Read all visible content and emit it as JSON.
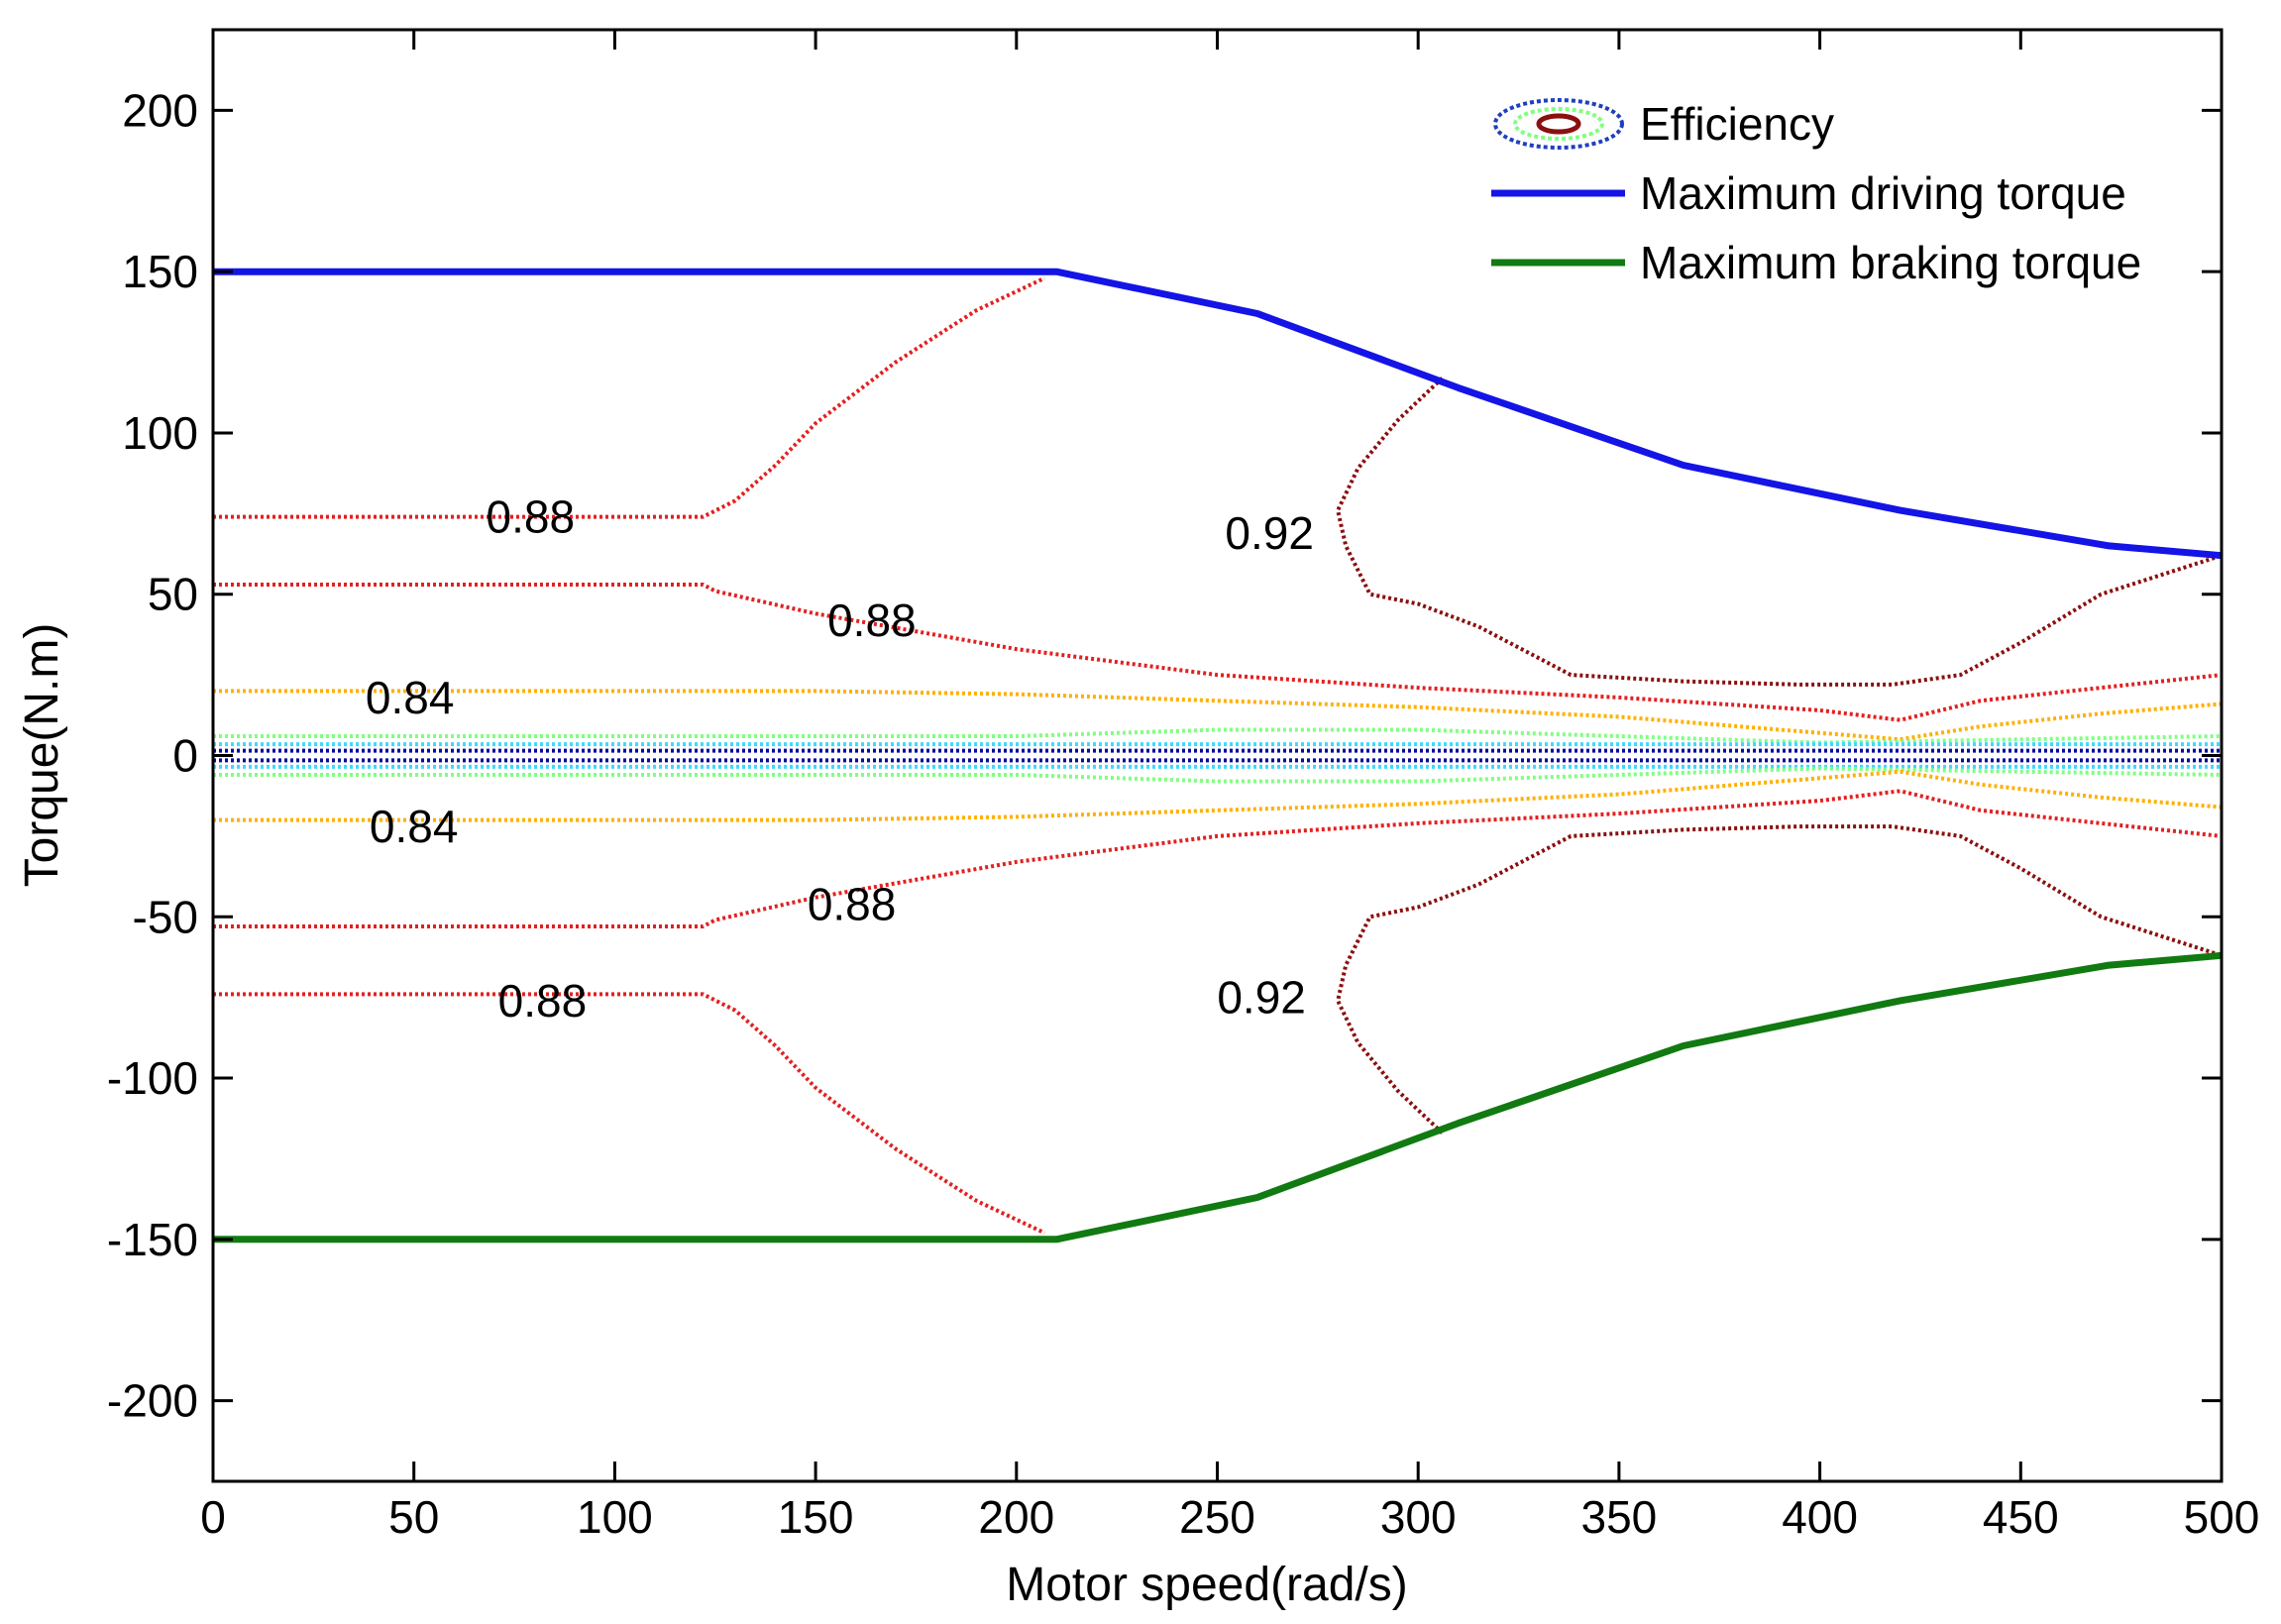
{
  "chart_data": {
    "type": "line",
    "title": "",
    "xlabel": "Motor speed(rad/s)",
    "ylabel": "Torque(N.m)",
    "xlim": [
      0,
      500
    ],
    "ylim": [
      -225,
      225
    ],
    "xticks": [
      0,
      50,
      100,
      150,
      200,
      250,
      300,
      350,
      400,
      450,
      500
    ],
    "yticks": [
      -200,
      -150,
      -100,
      -50,
      0,
      50,
      100,
      150,
      200
    ],
    "grid": false,
    "legend_position": "top-right",
    "legend": [
      {
        "name": "Efficiency",
        "style": "contour",
        "color": "#1f3fbf"
      },
      {
        "name": "Maximum driving torque",
        "style": "line",
        "color": "#1414e6"
      },
      {
        "name": "Maximum braking torque",
        "style": "line",
        "color": "#117a11"
      }
    ],
    "series": [
      {
        "name": "Maximum driving torque",
        "color": "#1414e6",
        "x": [
          0,
          210,
          260,
          310,
          366,
          420,
          472,
          500
        ],
        "y": [
          150,
          150,
          137,
          114,
          90,
          76,
          65,
          62
        ]
      },
      {
        "name": "Maximum braking torque",
        "color": "#117a11",
        "x": [
          0,
          210,
          260,
          310,
          366,
          420,
          472,
          500
        ],
        "y": [
          -150,
          -150,
          -137,
          -114,
          -90,
          -76,
          -65,
          -62
        ]
      }
    ],
    "contours": [
      {
        "level": "0.88",
        "color": "#e32020",
        "x": [
          0,
          122,
          130,
          140,
          150,
          170,
          190,
          207
        ],
        "y": [
          74,
          74,
          79,
          90,
          103,
          122,
          138,
          148
        ]
      },
      {
        "level": "0.88",
        "color": "#e32020",
        "x": [
          0,
          122,
          125,
          150,
          200,
          250,
          300,
          350,
          400,
          420,
          440,
          470,
          500
        ],
        "y": [
          53,
          53,
          51,
          44,
          33,
          25,
          21,
          18,
          14,
          11,
          17,
          21,
          25
        ]
      },
      {
        "level": "0.84",
        "color": "#ffb000",
        "x": [
          0,
          150,
          200,
          250,
          300,
          350,
          400,
          420,
          440,
          470,
          500
        ],
        "y": [
          20,
          20,
          19,
          17,
          15,
          12,
          7,
          5,
          9,
          13,
          16
        ]
      },
      {
        "level": "",
        "color": "#80ff80",
        "x": [
          0,
          200,
          250,
          300,
          400,
          500
        ],
        "y": [
          6,
          6,
          8,
          8,
          4,
          6
        ]
      },
      {
        "level": "",
        "color": "#40d8ff",
        "x": [
          0,
          500
        ],
        "y": [
          3.5,
          3.5
        ]
      },
      {
        "level": "",
        "color": "#0a0aa0",
        "x": [
          0,
          500
        ],
        "y": [
          1.5,
          1.5
        ]
      },
      {
        "level": "",
        "color": "#0a0aa0",
        "x": [
          0,
          500
        ],
        "y": [
          -1.5,
          -1.5
        ]
      },
      {
        "level": "",
        "color": "#40d8ff",
        "x": [
          0,
          500
        ],
        "y": [
          -3.5,
          -3.5
        ]
      },
      {
        "level": "",
        "color": "#80ff80",
        "x": [
          0,
          200,
          250,
          300,
          400,
          500
        ],
        "y": [
          -6,
          -6,
          -8,
          -8,
          -4,
          -6
        ]
      },
      {
        "level": "0.84",
        "color": "#ffb000",
        "x": [
          0,
          150,
          200,
          250,
          300,
          350,
          400,
          420,
          440,
          470,
          500
        ],
        "y": [
          -20,
          -20,
          -19,
          -17,
          -15,
          -12,
          -7,
          -5,
          -9,
          -13,
          -16
        ]
      },
      {
        "level": "0.88",
        "color": "#e32020",
        "x": [
          0,
          122,
          125,
          150,
          200,
          250,
          300,
          350,
          400,
          420,
          440,
          470,
          500
        ],
        "y": [
          -53,
          -53,
          -51,
          -44,
          -33,
          -25,
          -21,
          -18,
          -14,
          -11,
          -17,
          -21,
          -25
        ]
      },
      {
        "level": "0.88",
        "color": "#e32020",
        "x": [
          0,
          122,
          130,
          140,
          150,
          170,
          190,
          207
        ],
        "y": [
          -74,
          -74,
          -79,
          -90,
          -103,
          -122,
          -138,
          -148
        ]
      },
      {
        "level": "0.92",
        "color": "#8b0f0f",
        "x": [
          306,
          295,
          285,
          280,
          282,
          288,
          300,
          315,
          338,
          366,
          395,
          418,
          435,
          450,
          470,
          500
        ],
        "y": [
          117,
          104,
          89,
          76,
          65,
          50,
          47,
          40,
          25,
          23,
          22,
          22,
          25,
          35,
          50,
          62
        ]
      },
      {
        "level": "0.92",
        "color": "#8b0f0f",
        "x": [
          306,
          295,
          285,
          280,
          282,
          288,
          300,
          315,
          338,
          366,
          395,
          418,
          435,
          450,
          470,
          500
        ],
        "y": [
          -117,
          -104,
          -89,
          -76,
          -65,
          -50,
          -47,
          -40,
          -25,
          -23,
          -22,
          -22,
          -25,
          -35,
          -50,
          -62
        ]
      }
    ],
    "contour_labels": [
      {
        "text": "0.88",
        "x": 79,
        "y": 74
      },
      {
        "text": "0.88",
        "x": 164,
        "y": 42
      },
      {
        "text": "0.84",
        "x": 49,
        "y": 18
      },
      {
        "text": "0.92",
        "x": 263,
        "y": 69
      },
      {
        "text": "0.84",
        "x": 50,
        "y": -22
      },
      {
        "text": "0.88",
        "x": 159,
        "y": -46
      },
      {
        "text": "0.88",
        "x": 82,
        "y": -76
      },
      {
        "text": "0.92",
        "x": 261,
        "y": -75
      }
    ]
  }
}
